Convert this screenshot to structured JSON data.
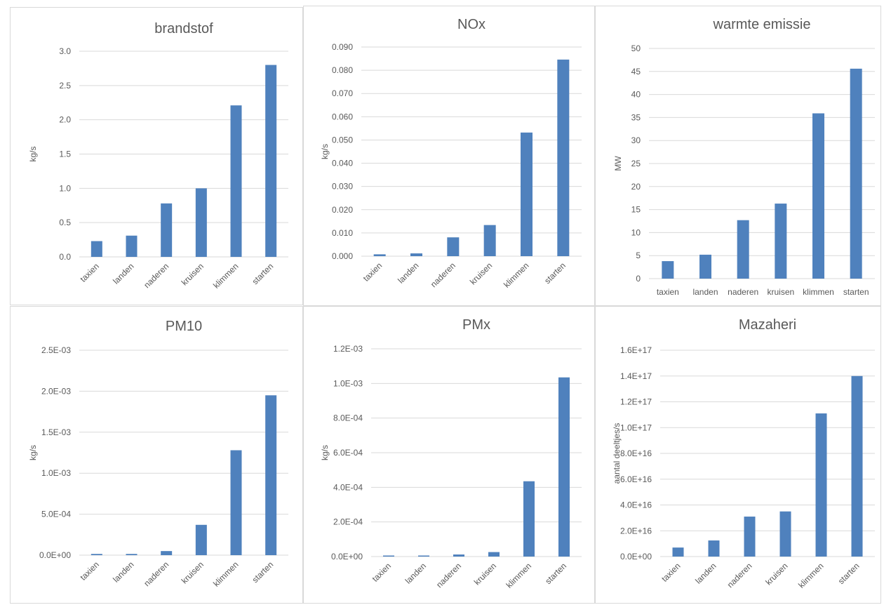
{
  "colors": {
    "bar": "#4F81BD",
    "grid": "#D9D9D9",
    "text": "#595959"
  },
  "chart_data": [
    {
      "type": "bar",
      "title": "brandstof",
      "xlabel": "",
      "ylabel": "kg/s",
      "categories": [
        "taxien",
        "landen",
        "naderen",
        "kruisen",
        "klimmen",
        "starten"
      ],
      "values": [
        0.23,
        0.31,
        0.78,
        1.0,
        2.21,
        2.8
      ],
      "ylim": [
        0,
        3.0
      ],
      "yticks": [
        "0.0",
        "0.5",
        "1.0",
        "1.5",
        "2.0",
        "2.5",
        "3.0"
      ],
      "grid": true,
      "legend": false
    },
    {
      "type": "bar",
      "title": "NOx",
      "xlabel": "",
      "ylabel": "kg/s",
      "categories": [
        "taxien",
        "landen",
        "naderen",
        "kruisen",
        "klimmen",
        "starten"
      ],
      "values": [
        0.0008,
        0.0012,
        0.0081,
        0.0134,
        0.0532,
        0.0846
      ],
      "ylim": [
        0,
        0.09
      ],
      "yticks": [
        "0.000",
        "0.010",
        "0.020",
        "0.030",
        "0.040",
        "0.050",
        "0.060",
        "0.070",
        "0.080",
        "0.090"
      ],
      "grid": true,
      "legend": false
    },
    {
      "type": "bar",
      "title": "warmte emissie",
      "xlabel": "",
      "ylabel": "MW",
      "categories": [
        "taxien",
        "landen",
        "naderen",
        "kruisen",
        "klimmen",
        "starten"
      ],
      "values": [
        3.8,
        5.2,
        12.7,
        16.3,
        35.9,
        45.6
      ],
      "ylim": [
        0,
        50
      ],
      "yticks": [
        "0",
        "5",
        "10",
        "15",
        "20",
        "25",
        "30",
        "35",
        "40",
        "45",
        "50"
      ],
      "grid": true,
      "legend": false
    },
    {
      "type": "bar",
      "title": "PM10",
      "xlabel": "",
      "ylabel": "kg/s",
      "categories": [
        "taxien",
        "landen",
        "naderen",
        "kruisen",
        "klimmen",
        "starten"
      ],
      "values": [
        1.5e-05,
        1.5e-05,
        5e-05,
        0.00037,
        0.00128,
        0.00195
      ],
      "ylim": [
        0,
        0.0025
      ],
      "yticks": [
        "0.0E+00",
        "5.0E-04",
        "1.0E-03",
        "1.5E-03",
        "2.0E-03",
        "2.5E-03"
      ],
      "grid": true,
      "legend": false
    },
    {
      "type": "bar",
      "title": "PMx",
      "xlabel": "",
      "ylabel": "kg/s",
      "categories": [
        "taxien",
        "landen",
        "naderen",
        "kruisen",
        "klimmen",
        "starten"
      ],
      "values": [
        5e-06,
        6e-06,
        1.2e-05,
        2.6e-05,
        0.000435,
        0.001035
      ],
      "ylim": [
        0,
        0.0012
      ],
      "yticks": [
        "0.0E+00",
        "2.0E-04",
        "4.0E-04",
        "6.0E-04",
        "8.0E-04",
        "1.0E-03",
        "1.2E-03"
      ],
      "grid": true,
      "legend": false
    },
    {
      "type": "bar",
      "title": "Mazaheri",
      "xlabel": "",
      "ylabel": "aantal deeltjes/s",
      "categories": [
        "taxien",
        "landen",
        "naderen",
        "kruisen",
        "klimmen",
        "starten"
      ],
      "values": [
        7000000000000000.0,
        1.25e+16,
        3.1e+16,
        3.5e+16,
        1.11e+17,
        1.4e+17
      ],
      "ylim": [
        0,
        1.6e+17
      ],
      "yticks": [
        "0.0E+00",
        "2.0E+16",
        "4.0E+16",
        "6.0E+16",
        "8.0E+16",
        "1.0E+17",
        "1.2E+17",
        "1.4E+17",
        "1.6E+17"
      ],
      "grid": true,
      "legend": false
    }
  ]
}
